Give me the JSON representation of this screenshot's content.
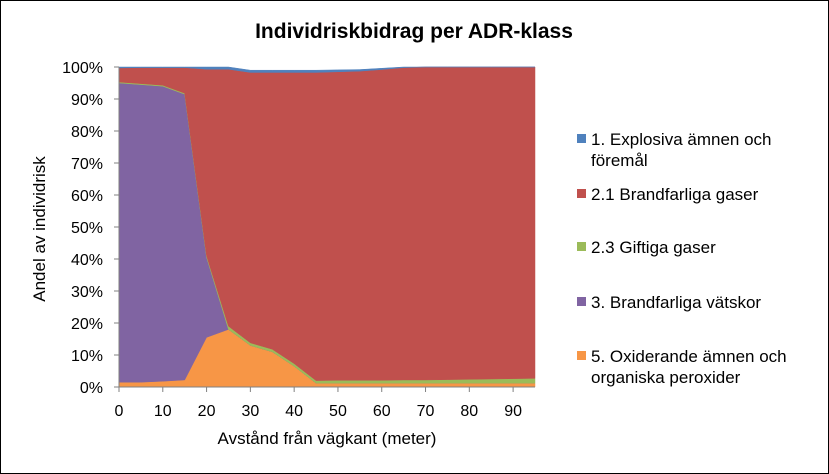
{
  "chart_data": {
    "type": "area",
    "stacked": "percent",
    "title": "Individriskbidrag per ADR-klass",
    "xlabel": "Avstånd från vägkant (meter)",
    "ylabel": "Andel av individrisk",
    "x": [
      0,
      5,
      10,
      15,
      20,
      25,
      30,
      35,
      40,
      45,
      50,
      55,
      60,
      65,
      70,
      75,
      80,
      85,
      90,
      95
    ],
    "xlim": [
      0,
      95
    ],
    "x_tick_labels": [
      "0",
      "10",
      "20",
      "30",
      "40",
      "50",
      "60",
      "70",
      "80",
      "90"
    ],
    "ylim": [
      0,
      100
    ],
    "y_tick_labels": [
      "0%",
      "10%",
      "20%",
      "30%",
      "40%",
      "50%",
      "60%",
      "70%",
      "80%",
      "90%",
      "100%"
    ],
    "grid": false,
    "legend_position": "right",
    "series": [
      {
        "name": "5. Oxiderande ämnen och organiska peroxider",
        "color": "#F79646",
        "values": [
          1.5,
          1.5,
          1.8,
          2.2,
          15.5,
          18,
          13,
          11,
          6.5,
          1.2,
          1.2,
          1.2,
          1.2,
          1.2,
          1.2,
          1.2,
          1.2,
          1.2,
          1.2,
          1.2
        ]
      },
      {
        "name": "3. Brandfarliga vätskor",
        "color": "#8064A2",
        "values": [
          93.5,
          93,
          92.2,
          89.3,
          25,
          0,
          0,
          0,
          0,
          0,
          0,
          0,
          0,
          0,
          0,
          0,
          0,
          0,
          0,
          0
        ]
      },
      {
        "name": "2.3 Giftiga gaser",
        "color": "#9BBB59",
        "values": [
          0.3,
          0.3,
          0.3,
          0.3,
          0.5,
          1,
          0.8,
          0.8,
          0.8,
          0.8,
          0.9,
          0.9,
          0.9,
          1,
          1,
          1.1,
          1.2,
          1.3,
          1.4,
          1.5
        ]
      },
      {
        "name": "2.1 Brandfarliga gaser",
        "color": "#C0504D",
        "values": [
          4.4,
          5,
          5.5,
          8,
          58.3,
          80.3,
          84.5,
          86.5,
          91,
          96.3,
          96.4,
          96.6,
          97.1,
          97.6,
          97.8,
          97.7,
          97.6,
          97.5,
          97.4,
          97.3
        ]
      },
      {
        "name": "1. Explosiva ämnen och föremål",
        "color": "#4F81BD",
        "values": [
          0.3,
          0.2,
          0.2,
          0.2,
          0.7,
          0.7,
          0.7,
          0.7,
          0.7,
          0.7,
          0.6,
          0.5,
          0.4,
          0.2,
          0,
          0,
          0,
          0,
          0,
          0
        ]
      }
    ],
    "legend_order": [
      4,
      3,
      2,
      1,
      0
    ]
  }
}
